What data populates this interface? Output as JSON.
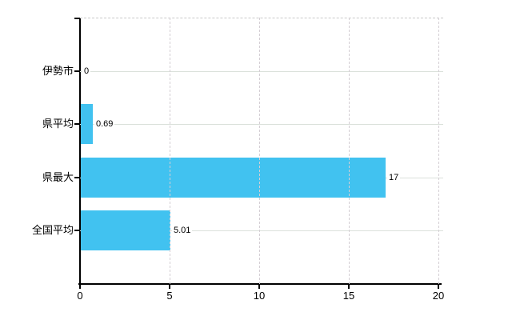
{
  "chart_data": {
    "type": "bar",
    "orientation": "horizontal",
    "categories": [
      "伊勢市",
      "県平均",
      "県最大",
      "全国平均"
    ],
    "values": [
      0,
      0.69,
      17,
      5.01
    ],
    "value_labels": [
      "0",
      "0.69",
      "17",
      "5.01"
    ],
    "x_tick_labels": [
      "0",
      "5",
      "10",
      "15",
      "20"
    ],
    "x_tick_values": [
      0,
      5,
      10,
      15,
      20
    ],
    "xlim": [
      0,
      20
    ],
    "xlabel": "",
    "ylabel": "",
    "title": "",
    "legend": "none",
    "grid": {
      "horizontal": "solid line at each category center, extends slightly past plot right edge",
      "vertical": "dashed line at each x tick except 0",
      "top_border": "dashed"
    },
    "colors": {
      "bar": "#41c2f0",
      "axis": "#000000",
      "gridline_horizontal": "#dbe1db",
      "gridline_vertical": "#d4ced4",
      "gridline_top": "#c9c9c9",
      "text": "#000000",
      "background": "#ffffff"
    }
  }
}
